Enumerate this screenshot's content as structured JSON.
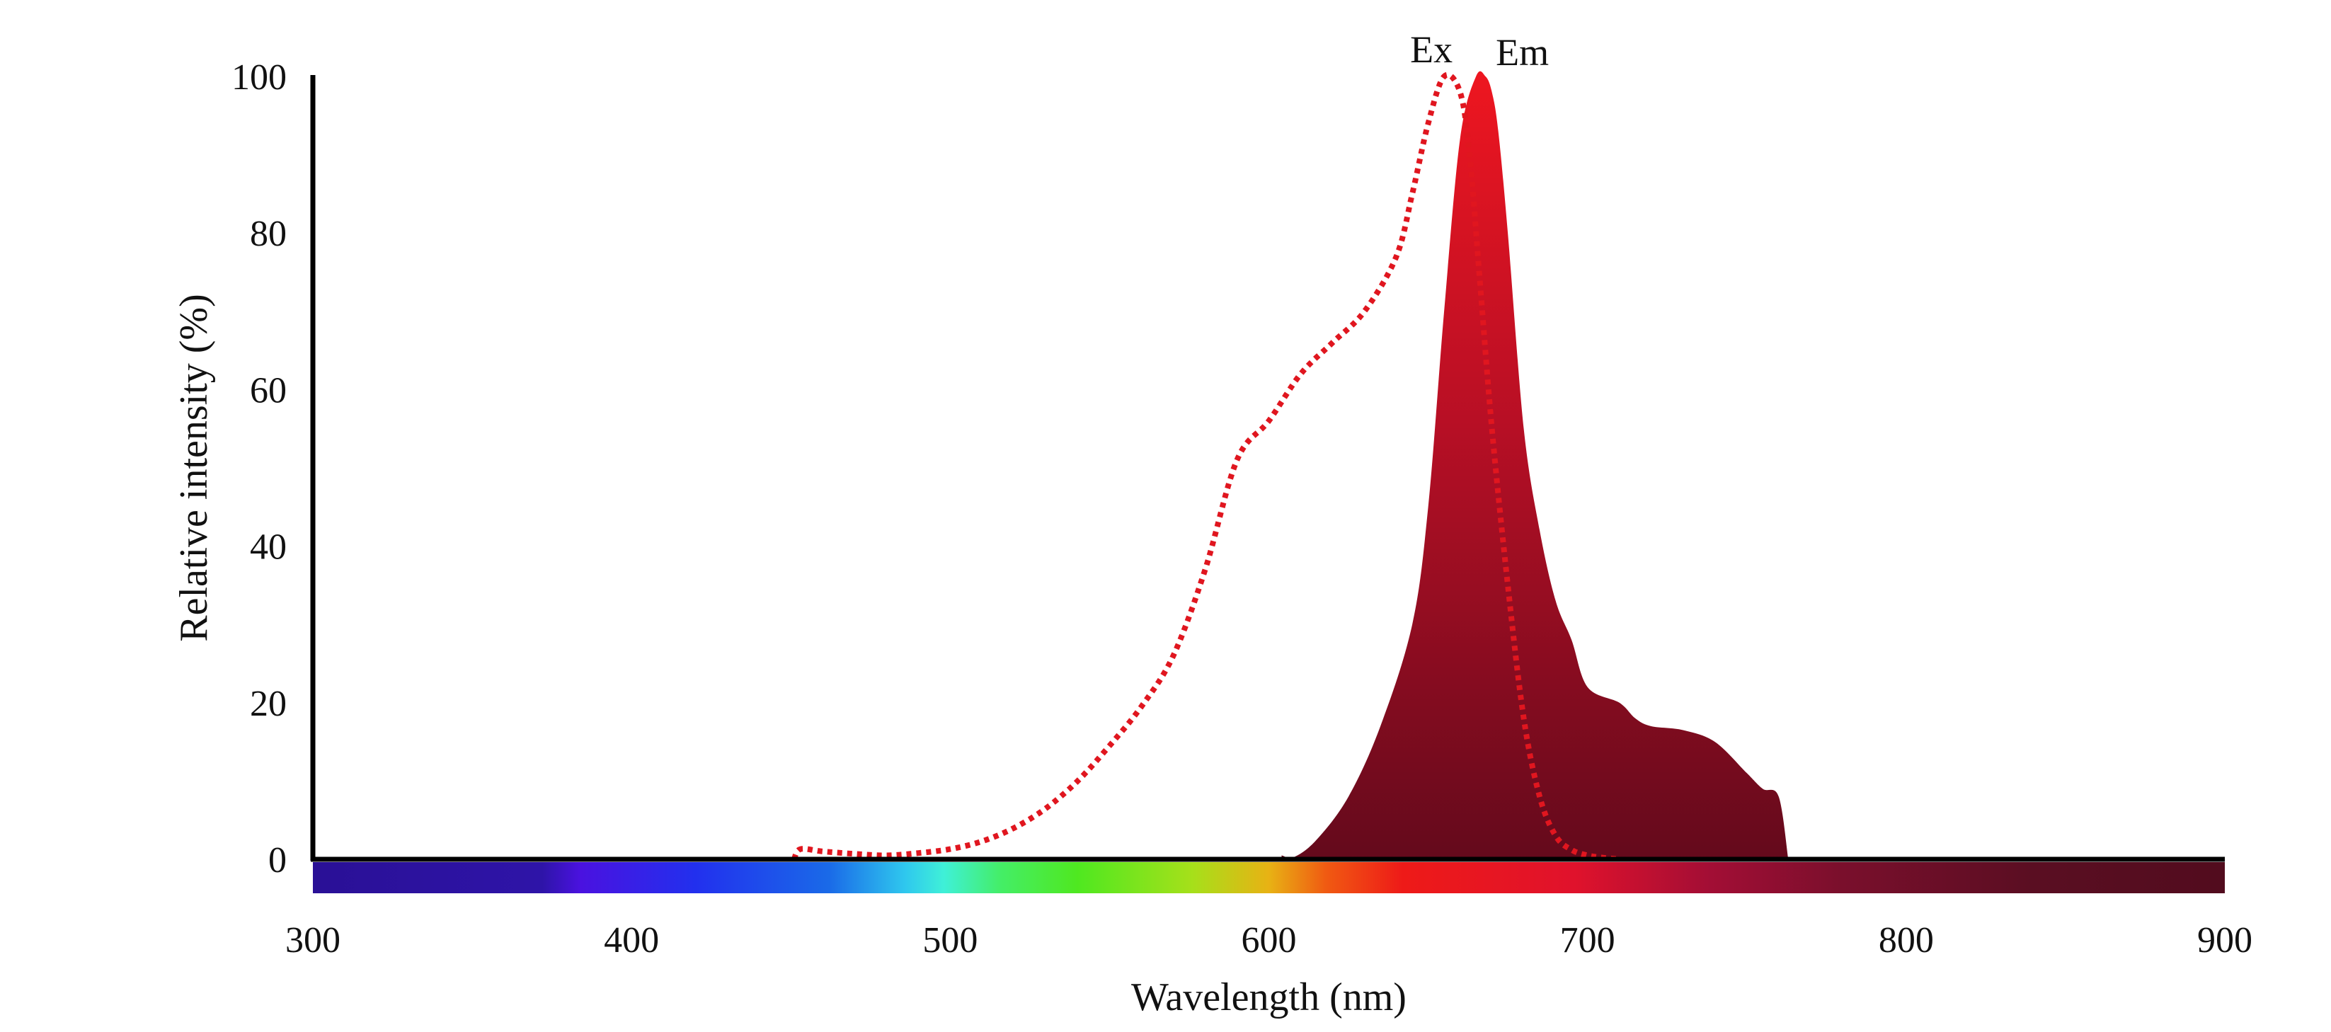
{
  "chart_data": {
    "type": "line",
    "title": "",
    "xlabel": "Wavelength (nm)",
    "ylabel": "Relative intensity (%)",
    "xlim": [
      300,
      900
    ],
    "ylim": [
      0,
      100
    ],
    "x_ticks": [
      "300",
      "400",
      "500",
      "600",
      "700",
      "800",
      "900"
    ],
    "y_ticks": [
      "0",
      "20",
      "40",
      "60",
      "80",
      "100"
    ],
    "grid": false,
    "legend": "none",
    "spectrum_bar": true,
    "series": [
      {
        "name": "Ex",
        "style": "dotted",
        "color": "#e0161f",
        "x": [
          451,
          453,
          460,
          470,
          480,
          490,
          500,
          510,
          520,
          530,
          540,
          550,
          560,
          570,
          580,
          590,
          600,
          610,
          620,
          630,
          640,
          645,
          650,
          655,
          660,
          663,
          666,
          670,
          675,
          680,
          685,
          690,
          695,
          700,
          705,
          710
        ],
        "y": [
          0,
          1.3,
          1,
          0.7,
          0.5,
          0.8,
          1.3,
          2.3,
          4,
          6.5,
          10,
          14.5,
          19.5,
          26,
          37,
          51,
          56,
          62,
          66,
          70,
          77,
          85,
          94,
          100,
          98,
          90,
          75,
          55,
          35,
          18,
          8,
          3,
          1.2,
          0.5,
          0.2,
          0
        ]
      },
      {
        "name": "Em",
        "style": "filled",
        "color": "#c8102e",
        "x": [
          604,
          608,
          615,
          625,
          635,
          645,
          650,
          655,
          660,
          665,
          668,
          670,
          672,
          675,
          680,
          685,
          690,
          695,
          700,
          710,
          715,
          720,
          730,
          740,
          750,
          755,
          760,
          763
        ],
        "y": [
          0.5,
          0.3,
          2.5,
          8,
          17,
          30,
          45,
          70,
          92,
          100,
          100,
          98,
          93,
          80,
          55,
          42,
          33,
          28,
          22,
          20,
          18,
          17,
          16.5,
          15,
          11,
          9,
          8,
          0
        ]
      }
    ]
  }
}
